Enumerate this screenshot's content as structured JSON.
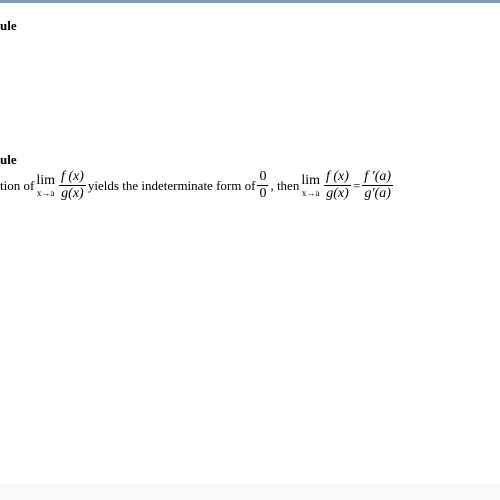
{
  "colors": {
    "top_border": "#7a9cb8",
    "background": "#ffffff",
    "text": "#000000"
  },
  "typography": {
    "body_fontsize": 13,
    "math_fontsize": 14,
    "subscript_fontsize": 9,
    "font_family": "Times New Roman"
  },
  "heading1": "ule",
  "heading2": "ule",
  "line": {
    "part1": "tion of ",
    "lim1": {
      "top": "lim",
      "bot": "x→a"
    },
    "frac1": {
      "num": "f (x)",
      "den": "g(x)"
    },
    "part2": " yields the indeterminate form of ",
    "frac_zero": {
      "num": "0",
      "den": "0"
    },
    "part3": " , then ",
    "lim2": {
      "top": "lim",
      "bot": "x→a"
    },
    "frac2": {
      "num": "f (x)",
      "den": "g(x)"
    },
    "eq": " = ",
    "frac3": {
      "num": "f ′(a)",
      "den": "g′(a)"
    }
  }
}
